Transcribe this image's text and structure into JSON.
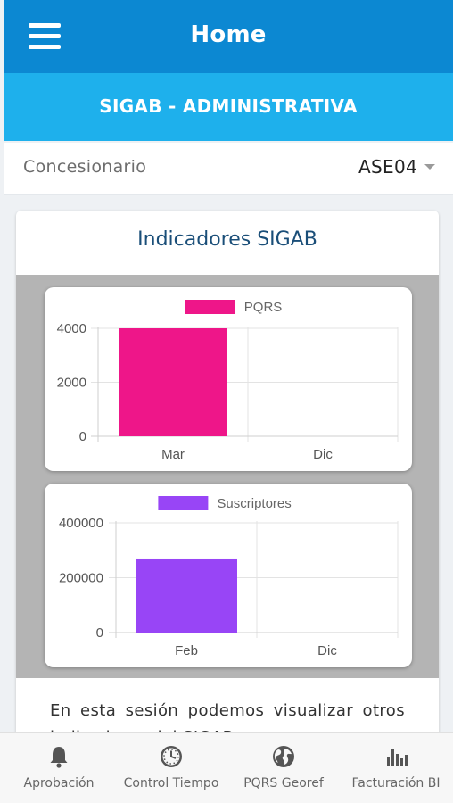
{
  "header": {
    "title": "Home",
    "menu_icon": "hamburger-menu-icon"
  },
  "subheader": {
    "title": "SIGAB - ADMINISTRATIVA"
  },
  "selector": {
    "label": "Concesionario",
    "value": "ASE04"
  },
  "card": {
    "title": "Indicadores SIGAB",
    "text": "En esta sesión podemos visualizar otros indicadores del SIGAB."
  },
  "chart_data": [
    {
      "type": "bar",
      "categories": [
        "Mar",
        "Dic"
      ],
      "series": [
        {
          "name": "PQRS",
          "values": [
            4000,
            0
          ],
          "color": "#ee1689"
        }
      ],
      "yticks": [
        "4000",
        "2000",
        "0"
      ],
      "ylim": [
        0,
        4000
      ],
      "legend": "top"
    },
    {
      "type": "bar",
      "categories": [
        "Feb",
        "Dic"
      ],
      "series": [
        {
          "name": "Suscriptores",
          "values": [
            270000,
            0
          ],
          "color": "#9845f6"
        }
      ],
      "yticks": [
        "400000",
        "200000",
        "0"
      ],
      "ylim": [
        0,
        400000
      ],
      "legend": "top"
    }
  ],
  "bottom_nav": {
    "items": [
      {
        "label": "Aprobación",
        "icon": "bell-icon"
      },
      {
        "label": "Control Tiempo",
        "icon": "clock-icon"
      },
      {
        "label": "PQRS Georef",
        "icon": "globe-icon"
      },
      {
        "label": "Facturación BI",
        "icon": "bar-chart-icon"
      }
    ]
  }
}
